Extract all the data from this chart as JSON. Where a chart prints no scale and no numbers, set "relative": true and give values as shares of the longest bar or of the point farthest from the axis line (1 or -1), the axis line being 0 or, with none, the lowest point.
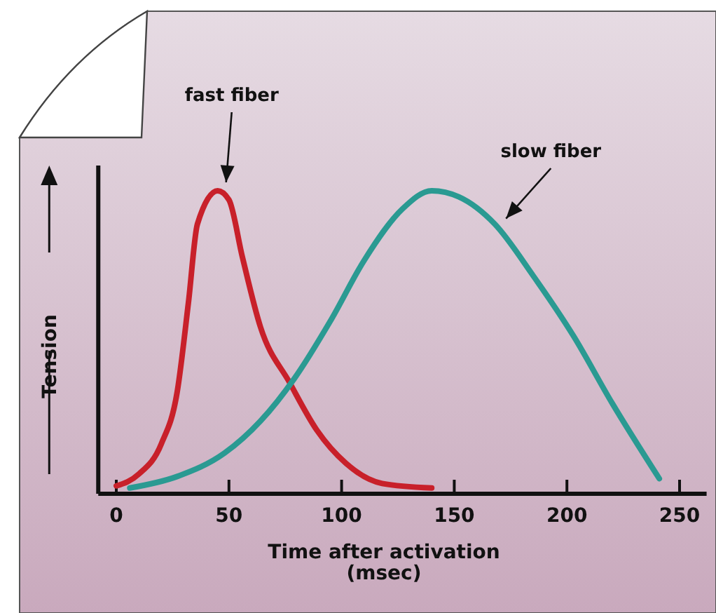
{
  "chart_data": {
    "type": "line",
    "relative": true,
    "xlabel": "Time after activation\n(msec)",
    "ylabel": "Tension",
    "xlim": [
      -8,
      262
    ],
    "xticks": [
      0,
      50,
      100,
      150,
      200,
      250
    ],
    "line_style": "solid",
    "series": [
      {
        "name": "fast fiber",
        "color": "#c8202a",
        "x": [
          0,
          10,
          20,
          27,
          32,
          36,
          45,
          50,
          56,
          64,
          77,
          89,
          102,
          118,
          140
        ],
        "values": [
          0.026,
          0.065,
          0.165,
          0.335,
          0.63,
          0.89,
          1.0,
          0.97,
          0.78,
          0.55,
          0.366,
          0.21,
          0.1,
          0.034,
          0.019
        ]
      },
      {
        "name": "slow fiber",
        "color": "#2a9a92",
        "x": [
          6,
          27,
          48,
          64,
          79,
          95,
          110,
          127,
          140,
          152,
          168,
          185,
          203,
          220,
          241
        ],
        "values": [
          0.019,
          0.057,
          0.134,
          0.24,
          0.38,
          0.57,
          0.77,
          0.94,
          1.0,
          0.98,
          0.89,
          0.72,
          0.52,
          0.3,
          0.05
        ]
      }
    ]
  }
}
